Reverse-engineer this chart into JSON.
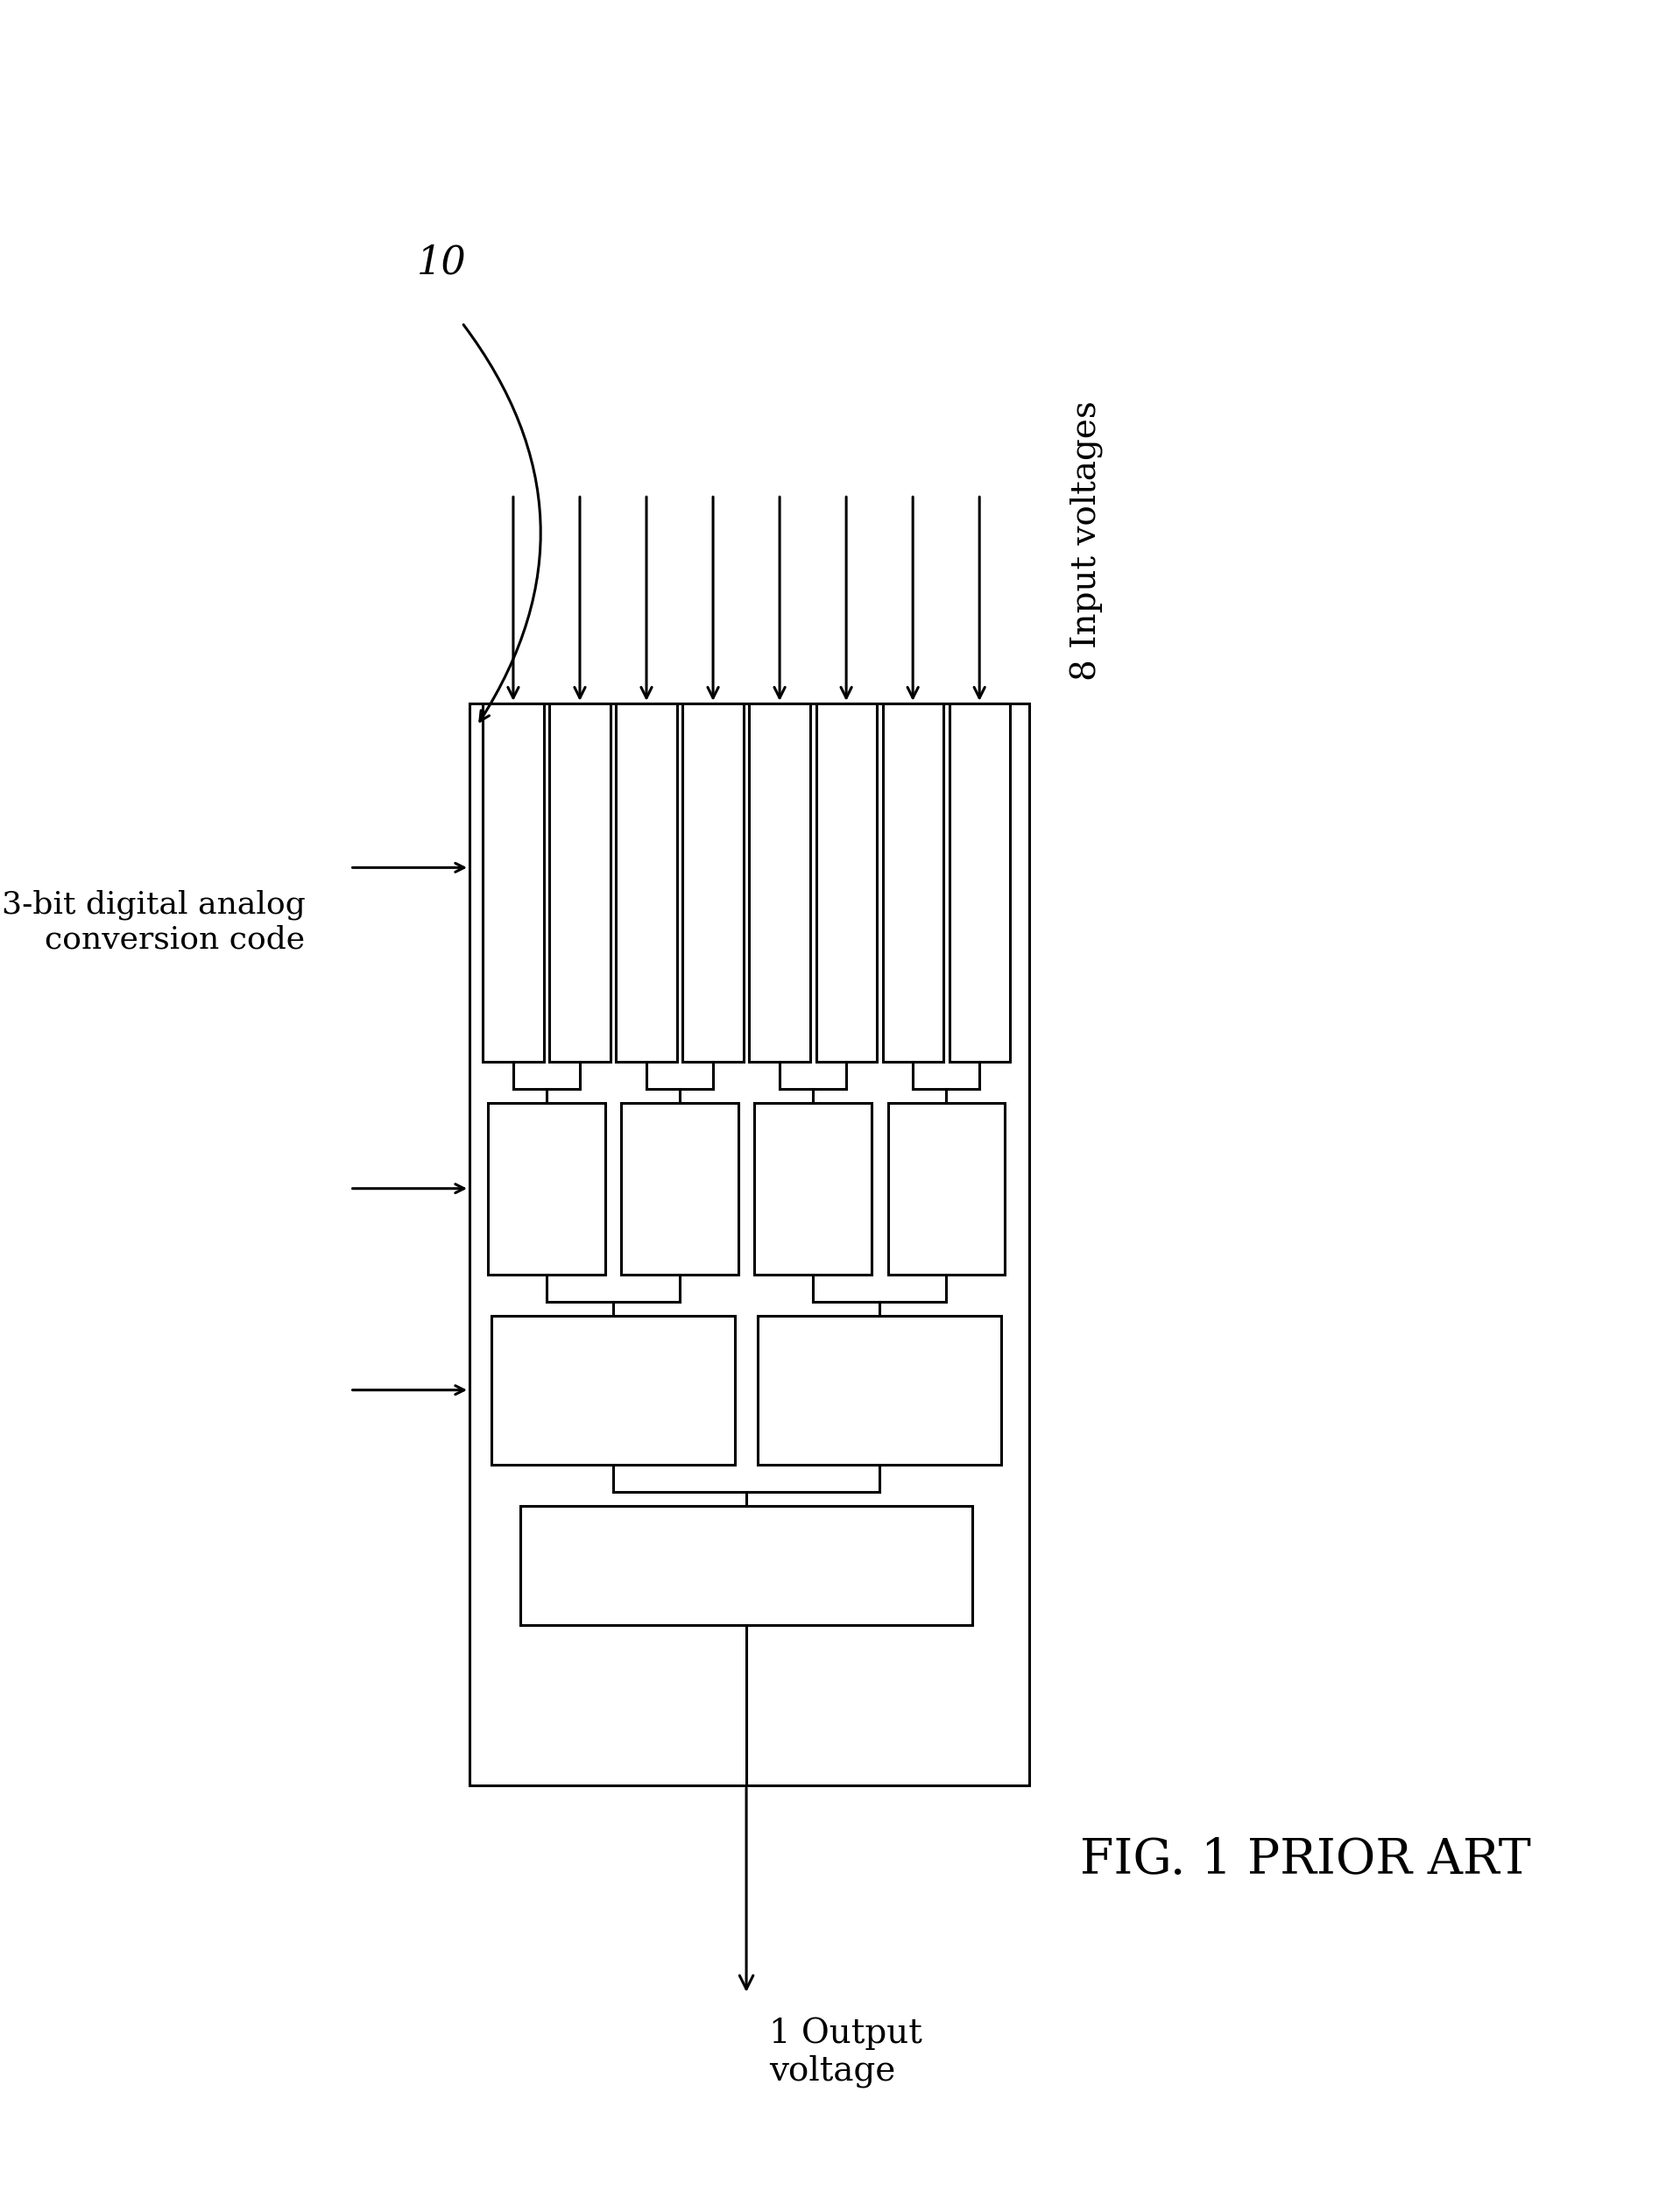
{
  "fig_width": 18.94,
  "fig_height": 25.25,
  "bg_color": "#ffffff",
  "line_color": "#000000",
  "line_width": 2.2,
  "fig_label": "10",
  "fig_label_fontsize": 32,
  "caption": "FIG. 1 PRIOR ART",
  "caption_fontsize": 40,
  "title_input_voltages": "8 Input voltages",
  "title_output_voltage": "1 Output\nvoltage",
  "title_dac_code": "3-bit digital analog\nconversion code",
  "input_voltages_fontsize": 28,
  "output_voltage_fontsize": 28,
  "dac_code_fontsize": 26
}
